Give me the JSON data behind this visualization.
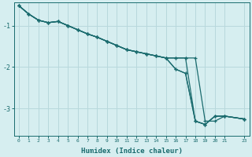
{
  "xlabel": "Humidex (Indice chaleur)",
  "bg_color": "#d6eef0",
  "grid_color": "#b8d8dc",
  "line_color": "#1a6b6e",
  "xlim": [
    -0.5,
    23.5
  ],
  "ylim": [
    -3.65,
    -0.45
  ],
  "yticks": [
    -1,
    -2,
    -3
  ],
  "lines": [
    [
      0,
      1,
      2,
      3,
      4,
      5,
      6,
      7,
      8,
      9,
      10,
      11,
      12,
      13,
      14,
      15,
      16,
      17,
      18,
      19,
      20,
      21,
      23
    ],
    [
      -0.52,
      -0.72,
      -0.87,
      -0.93,
      -0.9,
      -1.0,
      -1.1,
      -1.2,
      -1.28,
      -1.38,
      -1.48,
      -1.58,
      -1.63,
      -1.68,
      -1.73,
      -1.78,
      -1.78,
      -1.78,
      -1.78,
      -3.3,
      -3.3,
      -3.18,
      -3.25
    ],
    [
      0,
      1,
      2,
      3,
      4,
      5,
      6,
      7,
      8,
      9,
      10,
      11,
      12,
      13,
      14,
      15,
      16,
      17,
      18,
      19,
      20,
      21,
      23
    ],
    [
      -0.52,
      -0.72,
      -0.87,
      -0.93,
      -0.9,
      -1.0,
      -1.1,
      -1.2,
      -1.28,
      -1.38,
      -1.48,
      -1.58,
      -1.63,
      -1.68,
      -1.73,
      -1.78,
      -1.78,
      -1.78,
      -3.3,
      -3.38,
      -3.18,
      -3.18,
      -3.25
    ],
    [
      0,
      1,
      2,
      3,
      4,
      5,
      6,
      7,
      8,
      9,
      10,
      11,
      12,
      13,
      14,
      15,
      16,
      17,
      18,
      19,
      20,
      21,
      23
    ],
    [
      -0.52,
      -0.72,
      -0.87,
      -0.93,
      -0.9,
      -1.0,
      -1.1,
      -1.2,
      -1.28,
      -1.38,
      -1.48,
      -1.58,
      -1.63,
      -1.68,
      -1.73,
      -1.78,
      -2.05,
      -2.15,
      -3.3,
      -3.38,
      -3.18,
      -3.18,
      -3.25
    ],
    [
      0,
      1,
      2,
      3,
      4,
      5,
      6,
      7,
      8,
      9,
      10,
      11,
      12,
      13,
      14,
      15,
      16,
      17,
      18,
      19,
      20,
      21,
      23
    ],
    [
      -0.52,
      -0.72,
      -0.87,
      -0.93,
      -0.9,
      -1.0,
      -1.1,
      -1.2,
      -1.28,
      -1.38,
      -1.48,
      -1.58,
      -1.63,
      -1.68,
      -1.73,
      -1.78,
      -2.05,
      -2.15,
      -3.3,
      -3.38,
      -3.18,
      -3.18,
      -3.25
    ]
  ]
}
